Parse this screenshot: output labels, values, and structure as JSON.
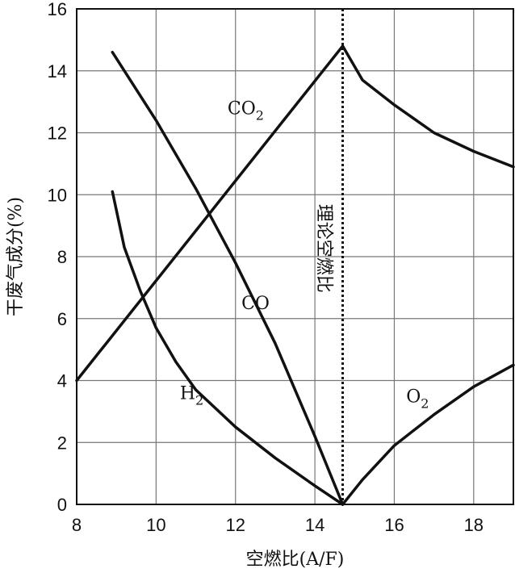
{
  "chart_data": {
    "type": "line",
    "title": "",
    "xlabel": "空燃比(A/F)",
    "ylabel": "干废气成分(%)",
    "xlim": [
      8,
      19
    ],
    "ylim": [
      0,
      16
    ],
    "x_ticks": [
      "8",
      "10",
      "12",
      "14",
      "16",
      "18"
    ],
    "y_ticks": [
      "0",
      "2",
      "4",
      "6",
      "8",
      "10",
      "12",
      "14",
      "16"
    ],
    "grid": true,
    "reference_line": {
      "x": 14.7,
      "label": "理论空燃比",
      "style": "dotted"
    },
    "series": [
      {
        "name": "CO2",
        "label_main": "CO",
        "label_sub": "2",
        "x": [
          8,
          14.7,
          15.2,
          16,
          17,
          18,
          19
        ],
        "y": [
          4.0,
          14.8,
          13.7,
          12.9,
          12.0,
          11.4,
          10.9
        ]
      },
      {
        "name": "CO",
        "label_main": "CO",
        "label_sub": "",
        "x": [
          8.9,
          10,
          11,
          12,
          13,
          14,
          14.7
        ],
        "y": [
          14.6,
          12.4,
          10.2,
          7.8,
          5.2,
          2.2,
          0.0
        ]
      },
      {
        "name": "H2",
        "label_main": "H",
        "label_sub": "2",
        "x": [
          8.9,
          9.2,
          9.6,
          10,
          10.5,
          11,
          12,
          13,
          14,
          14.7
        ],
        "y": [
          10.1,
          8.3,
          6.9,
          5.7,
          4.6,
          3.7,
          2.5,
          1.5,
          0.6,
          0.0
        ]
      },
      {
        "name": "O2",
        "label_main": "O",
        "label_sub": "2",
        "x": [
          14.7,
          15.2,
          16,
          17,
          18,
          19
        ],
        "y": [
          0.0,
          0.8,
          1.9,
          2.9,
          3.8,
          4.5
        ]
      }
    ]
  }
}
